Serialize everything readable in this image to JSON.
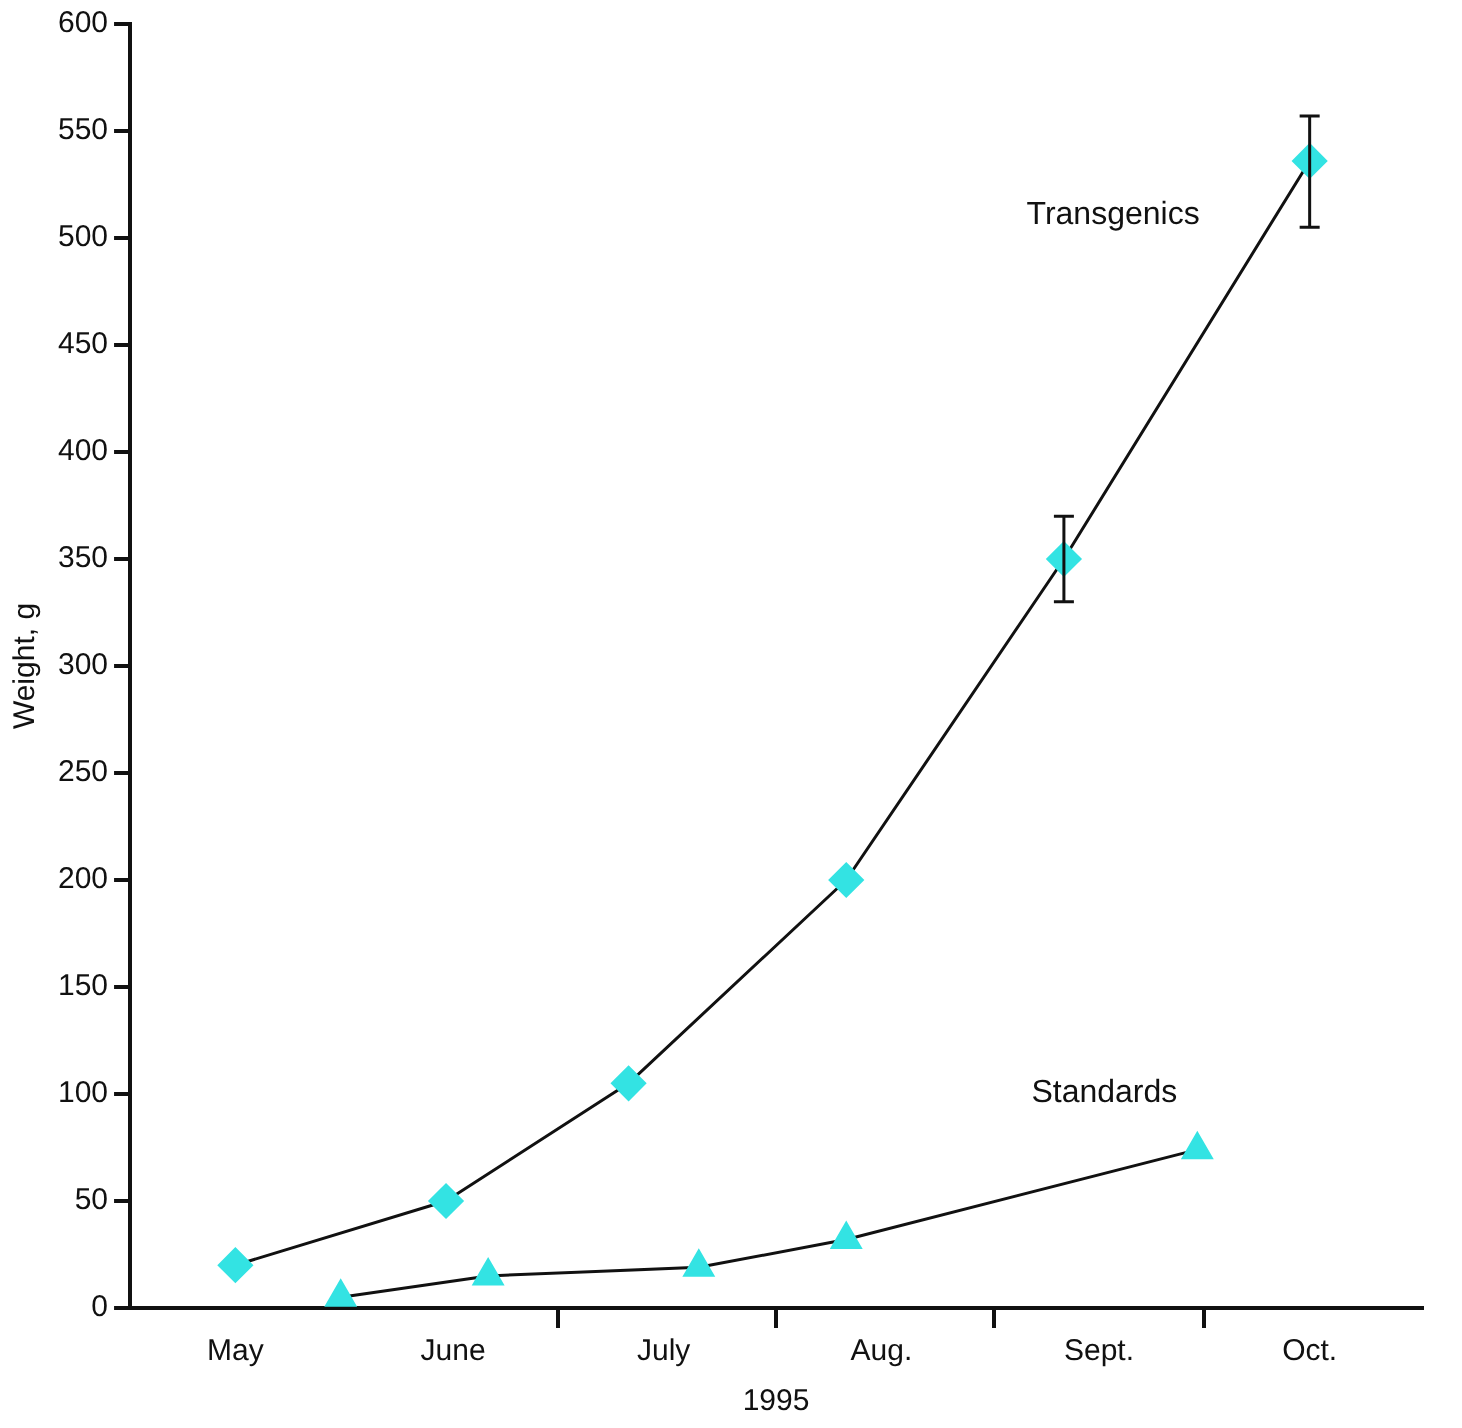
{
  "chart_data": {
    "type": "line",
    "xlabel": "1995",
    "ylabel": "Weight, g",
    "xlim": [
      "--05-01",
      "--11-01"
    ],
    "ylim": [
      0,
      600
    ],
    "xticks": [
      {
        "value": "--05-16",
        "label": "May"
      },
      {
        "value": "--06-16",
        "label": "June"
      },
      {
        "value": "--07-16",
        "label": "July"
      },
      {
        "value": "--08-16",
        "label": "Aug."
      },
      {
        "value": "--09-16",
        "label": "Sept."
      },
      {
        "value": "--10-16",
        "label": "Oct."
      },
      {
        "value": "--07-01",
        "label": null
      },
      {
        "value": "--08-01",
        "label": null
      },
      {
        "value": "--09-01",
        "label": null
      },
      {
        "value": "--10-01",
        "label": null
      }
    ],
    "yticks": [
      0,
      50,
      100,
      150,
      200,
      250,
      300,
      350,
      400,
      450,
      500,
      550,
      600
    ],
    "grid": false,
    "legend": false,
    "series": [
      {
        "name": "Transgenics",
        "color": "#33e3e3",
        "marker": "diamond",
        "x": [
          "--05-16",
          "--06-15",
          "--07-11",
          "--08-11",
          "--09-11",
          "--10-16"
        ],
        "values": [
          20,
          50,
          105,
          200,
          350,
          536
        ],
        "errors": [
          null,
          null,
          null,
          null,
          [
            330,
            370
          ],
          [
            505,
            557
          ]
        ]
      },
      {
        "name": "Standards",
        "color": "#33e3e3",
        "marker": "triangle",
        "x": [
          "--05-31",
          "--06-21",
          "--07-21",
          "--08-11",
          "--09-30"
        ],
        "values": [
          5,
          15,
          19,
          32,
          74
        ]
      }
    ]
  }
}
